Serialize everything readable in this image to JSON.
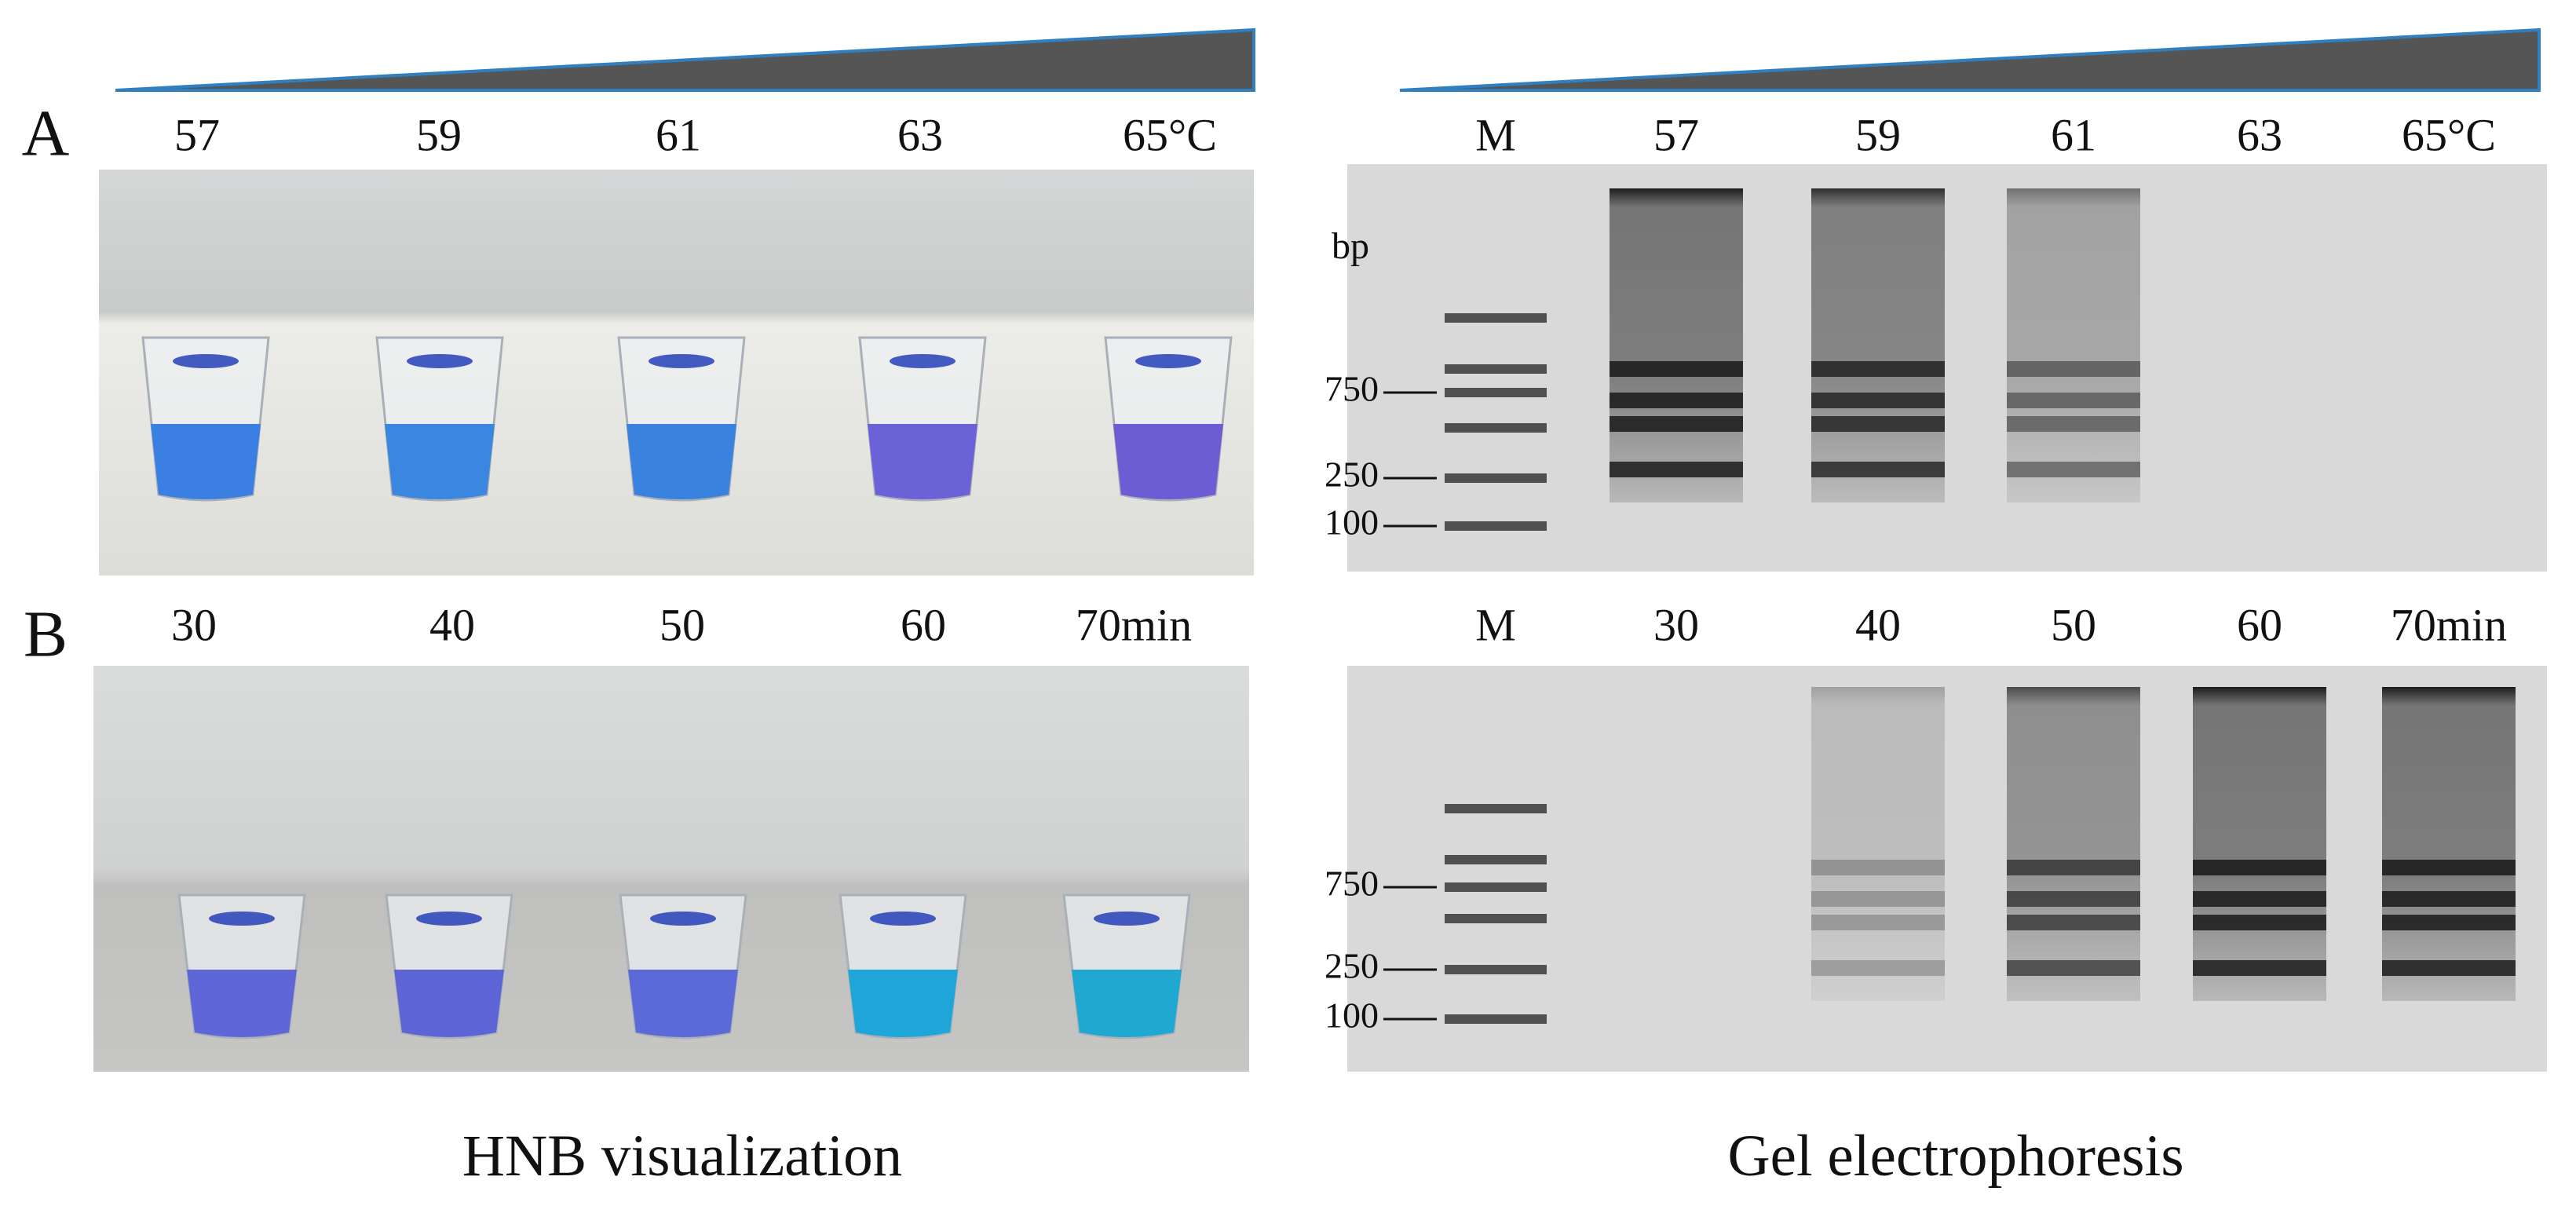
{
  "panels": [
    {
      "letter": "A",
      "hnb_labels": [
        "57",
        "59",
        "61",
        "63",
        "65°C"
      ],
      "gel_labels": [
        "M",
        "57",
        "59",
        "61",
        "63",
        "65°C"
      ],
      "unit_label": "bp",
      "ladder_labels": [
        "750",
        "250",
        "100"
      ]
    },
    {
      "letter": "B",
      "hnb_labels": [
        "30",
        "40",
        "50",
        "60",
        "70min"
      ],
      "gel_labels": [
        "M",
        "30",
        "40",
        "50",
        "60",
        "70min"
      ],
      "ladder_labels": [
        "750",
        "250",
        "100"
      ]
    }
  ],
  "captions": {
    "left": "HNB visualization",
    "right": "Gel electrophoresis"
  }
}
